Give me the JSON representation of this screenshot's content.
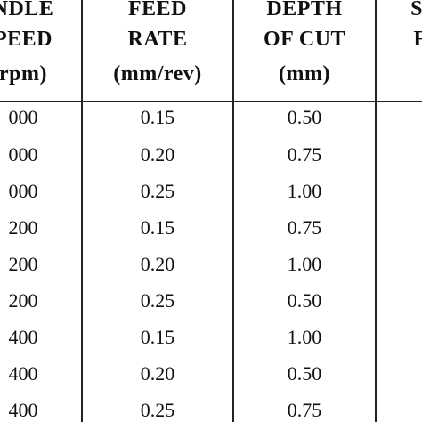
{
  "table": {
    "headers": [
      [
        "NDLE",
        "PEED",
        "rpm)"
      ],
      [
        "FEED",
        "RATE",
        "(mm/rev)"
      ],
      [
        "DEPTH",
        "OF CUT",
        "(mm)"
      ],
      [
        "SU",
        "FI",
        ""
      ]
    ],
    "rows": [
      [
        "000",
        "0.15",
        "0.50",
        ""
      ],
      [
        "000",
        "0.20",
        "0.75",
        ""
      ],
      [
        "000",
        "0.25",
        "1.00",
        ""
      ],
      [
        "200",
        "0.15",
        "0.75",
        ""
      ],
      [
        "200",
        "0.20",
        "1.00",
        ""
      ],
      [
        "200",
        "0.25",
        "0.50",
        ""
      ],
      [
        "400",
        "0.15",
        "1.00",
        ""
      ],
      [
        "400",
        "0.20",
        "0.50",
        ""
      ],
      [
        "400",
        "0.25",
        "0.75",
        ""
      ]
    ]
  }
}
